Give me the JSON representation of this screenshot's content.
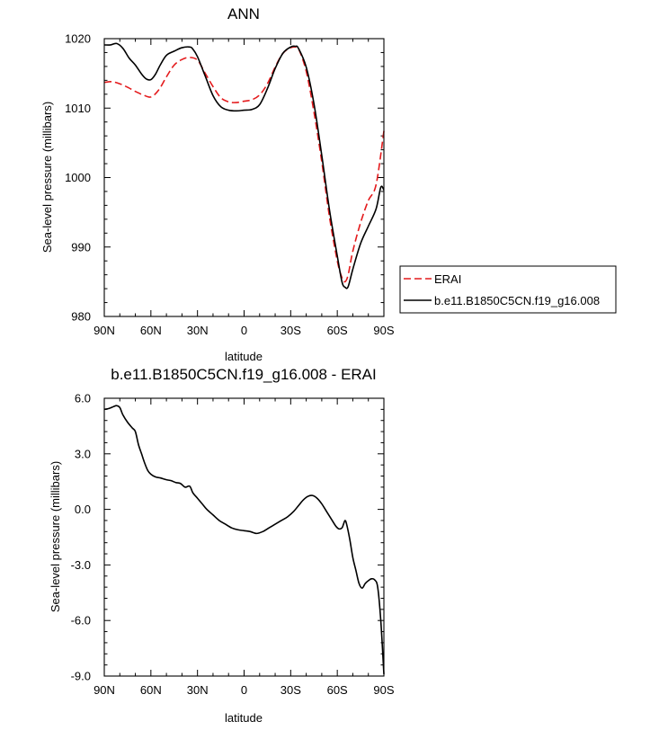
{
  "chart_data": [
    {
      "type": "line",
      "title": "ANN",
      "xlabel": "latitude",
      "ylabel": "Sea-level pressure (millibars)",
      "xlim": [
        -90,
        90
      ],
      "ylim": [
        980,
        1020
      ],
      "x_tick_values": [
        -90,
        -60,
        -30,
        0,
        30,
        60,
        90
      ],
      "x_tick_labels": [
        "90N",
        "60N",
        "30N",
        "0",
        "30S",
        "60S",
        "90S"
      ],
      "y_tick_values": [
        980,
        990,
        1000,
        1010,
        1020
      ],
      "y_tick_labels": [
        "980",
        "990",
        "1000",
        "1010",
        "1020"
      ],
      "legend": {
        "placement": "right",
        "entries": [
          "ERAI",
          "b.e11.B1850C5CN.f19_g16.008"
        ]
      },
      "series": [
        {
          "name": "ERAI",
          "color": "#e41a1c",
          "dash": "dashed",
          "x": [
            -90,
            -85,
            -80,
            -75,
            -70,
            -65,
            -60,
            -55,
            -50,
            -45,
            -40,
            -35,
            -30,
            -25,
            -20,
            -15,
            -10,
            -5,
            0,
            5,
            10,
            15,
            20,
            25,
            30,
            33,
            35,
            40,
            45,
            50,
            55,
            60,
            63,
            65,
            67,
            70,
            75,
            80,
            85,
            90
          ],
          "values": [
            1013.7,
            1013.8,
            1013.5,
            1013.0,
            1012.4,
            1011.9,
            1011.6,
            1012.6,
            1014.5,
            1016.2,
            1017.0,
            1017.3,
            1016.9,
            1015.0,
            1013.1,
            1011.5,
            1010.9,
            1010.8,
            1011.0,
            1011.2,
            1011.9,
            1013.5,
            1015.9,
            1017.9,
            1018.7,
            1018.8,
            1018.6,
            1015.3,
            1009.4,
            1002.3,
            994.3,
            988.0,
            985.6,
            985.0,
            986.0,
            989.4,
            993.5,
            996.7,
            999.0,
            1006.7
          ]
        },
        {
          "name": "b.e11.B1850C5CN.f19_g16.008",
          "color": "#000000",
          "dash": "solid",
          "x": [
            -90,
            -86,
            -82,
            -78,
            -74,
            -70,
            -66,
            -63,
            -60,
            -57,
            -54,
            -50,
            -45,
            -40,
            -35,
            -33,
            -30,
            -25,
            -20,
            -15,
            -10,
            -5,
            0,
            5,
            10,
            15,
            20,
            25,
            30,
            33,
            35,
            40,
            45,
            50,
            55,
            60,
            63,
            65,
            67,
            70,
            75,
            80,
            85,
            88,
            90
          ],
          "values": [
            1019.1,
            1019.1,
            1019.3,
            1018.6,
            1017.2,
            1016.2,
            1014.9,
            1014.2,
            1014.1,
            1014.9,
            1016.2,
            1017.6,
            1018.2,
            1018.7,
            1018.8,
            1018.5,
            1017.4,
            1014.6,
            1011.8,
            1010.2,
            1009.7,
            1009.6,
            1009.7,
            1009.8,
            1010.5,
            1012.8,
            1015.7,
            1017.9,
            1018.8,
            1018.9,
            1018.6,
            1015.9,
            1010.6,
            1003.2,
            995.3,
            988.7,
            985.0,
            984.2,
            984.3,
            986.8,
            990.5,
            993.0,
            995.5,
            998.6,
            998.2
          ]
        }
      ]
    },
    {
      "type": "line",
      "title": "b.e11.B1850C5CN.f19_g16.008 - ERAI",
      "xlabel": "latitude",
      "ylabel": "Sea-level pressure (millibars)",
      "xlim": [
        -90,
        90
      ],
      "ylim": [
        -9,
        6
      ],
      "x_tick_values": [
        -90,
        -60,
        -30,
        0,
        30,
        60,
        90
      ],
      "x_tick_labels": [
        "90N",
        "60N",
        "30N",
        "0",
        "30S",
        "60S",
        "90S"
      ],
      "y_tick_values": [
        6,
        3,
        0,
        -3,
        -6,
        -9
      ],
      "y_tick_labels": [
        "6.0",
        "3.0",
        "0.0",
        "-3.0",
        "-6.0",
        "-9.0"
      ],
      "series": [
        {
          "name": "b.e11.B1850C5CN.f19_g16.008 - ERAI",
          "color": "#000000",
          "dash": "solid",
          "x": [
            -90,
            -87,
            -84,
            -82,
            -80,
            -78,
            -75,
            -72,
            -70,
            -68,
            -66,
            -64,
            -62,
            -60,
            -57,
            -54,
            -50,
            -47,
            -44,
            -41,
            -38,
            -35,
            -33,
            -30,
            -27,
            -24,
            -20,
            -16,
            -12,
            -8,
            -4,
            0,
            4,
            8,
            12,
            16,
            20,
            24,
            28,
            32,
            35,
            38,
            41,
            44,
            47,
            50,
            53,
            56,
            59,
            61,
            63,
            64,
            65,
            66,
            68,
            70,
            72,
            74,
            76,
            78,
            80,
            82,
            84,
            86,
            88,
            90
          ],
          "values": [
            5.4,
            5.45,
            5.55,
            5.6,
            5.5,
            5.1,
            4.7,
            4.4,
            4.2,
            3.5,
            3.0,
            2.5,
            2.1,
            1.9,
            1.75,
            1.7,
            1.6,
            1.55,
            1.45,
            1.4,
            1.2,
            1.25,
            0.9,
            0.6,
            0.3,
            0.0,
            -0.3,
            -0.6,
            -0.8,
            -1.0,
            -1.1,
            -1.15,
            -1.2,
            -1.3,
            -1.2,
            -1.0,
            -0.8,
            -0.6,
            -0.4,
            -0.1,
            0.2,
            0.5,
            0.7,
            0.75,
            0.6,
            0.3,
            -0.1,
            -0.5,
            -0.9,
            -1.05,
            -1.0,
            -0.8,
            -0.6,
            -0.8,
            -1.6,
            -2.6,
            -3.3,
            -4.0,
            -4.25,
            -4.0,
            -3.85,
            -3.75,
            -3.8,
            -4.2,
            -6.0,
            -8.9
          ]
        }
      ]
    }
  ]
}
